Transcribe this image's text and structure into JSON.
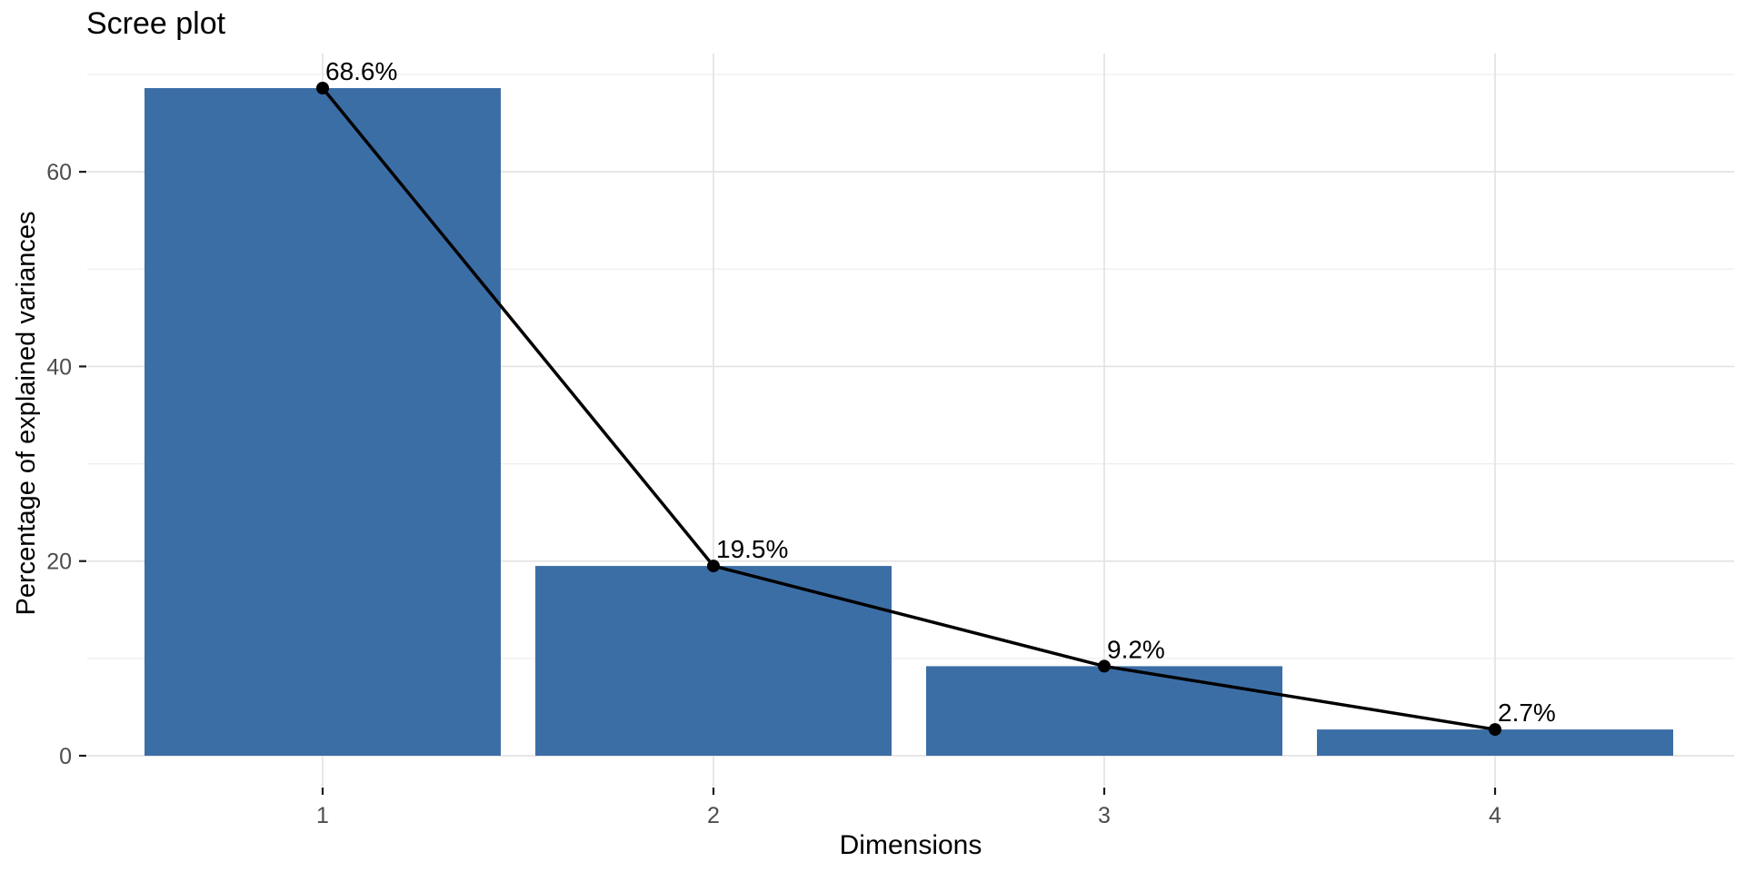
{
  "chart_data": {
    "type": "bar",
    "overlay": "line-with-points",
    "title": "Scree plot",
    "xlabel": "Dimensions",
    "ylabel": "Percentage of explained variances",
    "categories": [
      "1",
      "2",
      "3",
      "4"
    ],
    "values": [
      68.6,
      19.5,
      9.2,
      2.7
    ],
    "bar_labels": [
      "68.6%",
      "19.5%",
      "9.2%",
      "2.7%"
    ],
    "y_ticks": [
      0,
      20,
      40,
      60
    ],
    "y_minor_gridlines": [
      10,
      30,
      50,
      70
    ],
    "ylim": [
      0,
      72.3
    ],
    "grid": "horizontal major+minor, vertical major only",
    "legend": "none",
    "colors": {
      "background": "#FFFFFF",
      "bar_fill": "#3C6EA6",
      "line": "#000000",
      "point": "#000000",
      "label_text": "#000000",
      "grid_major": "#E3E3E3",
      "grid_minor": "#EDEDED",
      "tick_mark": "#1A1A1A",
      "tick_label": "#4D4D4D",
      "axis_title": "#000000"
    }
  }
}
